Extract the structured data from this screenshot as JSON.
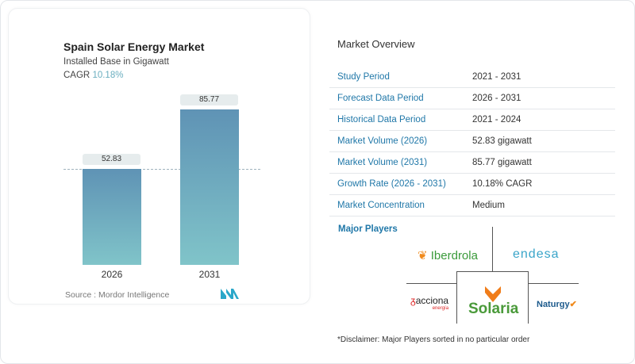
{
  "chart_data": {
    "type": "bar",
    "title": "Spain Solar Energy Market",
    "subtitle": "Installed Base in Gigawatt",
    "cagr_label": "CAGR",
    "cagr_value": "10.18%",
    "categories": [
      "2026",
      "2031"
    ],
    "values": [
      52.83,
      85.77
    ],
    "value_labels": [
      "52.83",
      "85.77"
    ],
    "bar_color_top": "#5f93b5",
    "bar_color_bottom": "#80c4c9",
    "source": "Source :  Mordor Intelligence"
  },
  "overview": {
    "title": "Market Overview",
    "rows": [
      {
        "label": "Study Period",
        "value": "2021 - 2031"
      },
      {
        "label": "Forecast Data Period",
        "value": "2026 - 2031"
      },
      {
        "label": "Historical Data Period",
        "value": "2021 - 2024"
      },
      {
        "label": "Market Volume (2026)",
        "value": "52.83 gigawatt"
      },
      {
        "label": "Market Volume (2031)",
        "value": "85.77 gigawatt"
      },
      {
        "label": "Growth Rate (2026 - 2031)",
        "value": "10.18% CAGR"
      },
      {
        "label": "Market Concentration",
        "value": "Medium"
      }
    ]
  },
  "players": {
    "title": "Major Players",
    "logos": [
      "Iberdrola",
      "endesa",
      "acciona",
      "Solaria",
      "Naturgy"
    ],
    "acciona_sub": "energía",
    "disclaimer": "*Disclaimer: Major Players sorted in no particular order"
  }
}
